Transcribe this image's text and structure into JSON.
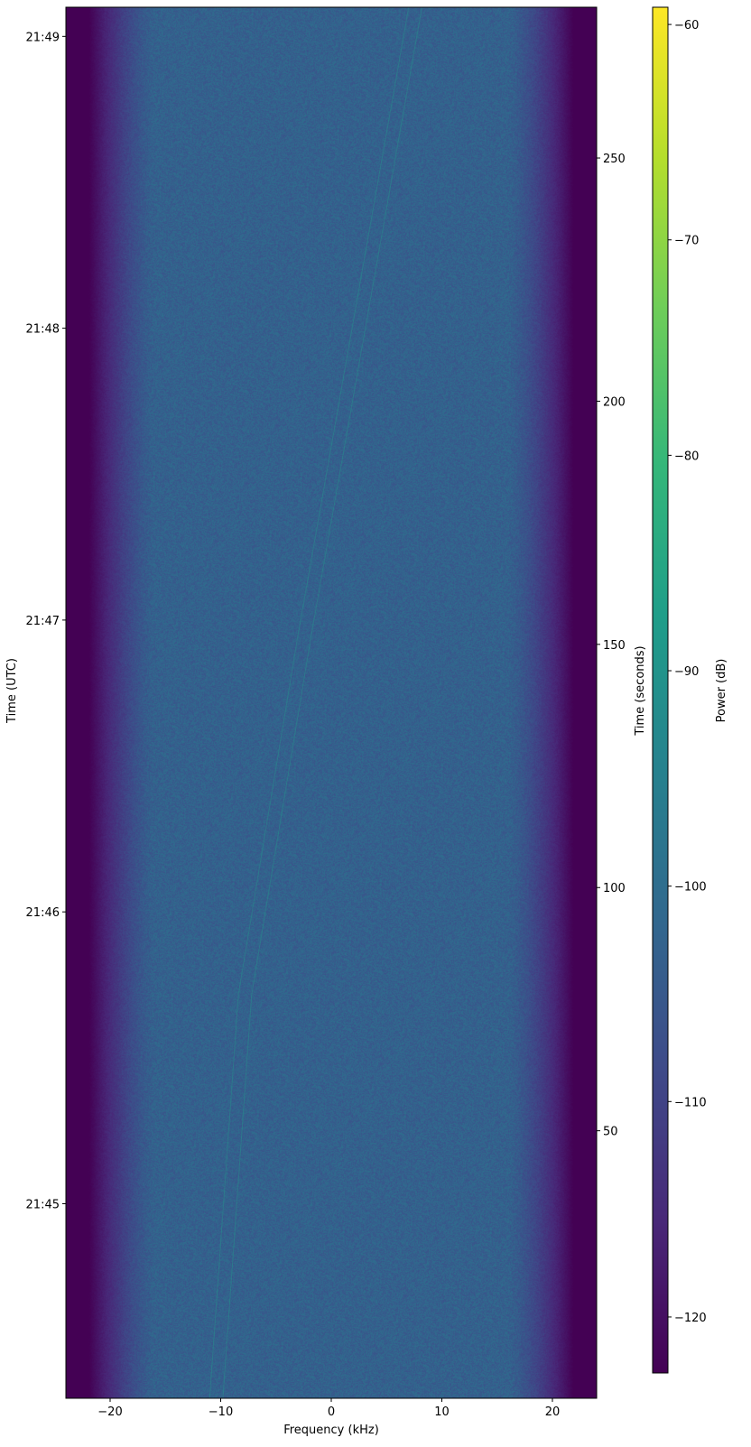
{
  "chart_data": {
    "type": "heatmap",
    "subtype": "spectrogram",
    "colormap": "viridis",
    "xlabel": "Frequency (kHz)",
    "ylabel_left": "Time (UTC)",
    "ylabel_right": "Time (seconds)",
    "colorbar_label": "Power (dB)",
    "xlim": [
      -24,
      24
    ],
    "ylim_seconds": [
      -5,
      281
    ],
    "clim": [
      -122.6,
      -59.2
    ],
    "x_ticks": [
      -20,
      -10,
      0,
      10,
      20
    ],
    "x_tick_labels": [
      "−20",
      "−10",
      "0",
      "10",
      "20"
    ],
    "right_ticks": [
      50,
      100,
      150,
      200,
      250
    ],
    "right_tick_labels": [
      "50",
      "100",
      "150",
      "200",
      "250"
    ],
    "left_ticks_seconds": [
      35,
      95,
      155,
      215,
      275
    ],
    "left_tick_labels": [
      "21:45",
      "21:46",
      "21:47",
      "21:48",
      "21:49"
    ],
    "colorbar_ticks": [
      -60,
      -70,
      -80,
      -90,
      -100,
      -110,
      -120
    ],
    "colorbar_tick_labels": [
      "−60",
      "−70",
      "−80",
      "−90",
      "−100",
      "−110",
      "−120"
    ],
    "noise_floor_db": -103,
    "band_edge_db": -123,
    "passband_khz": [
      -21,
      21
    ],
    "signal_traces": [
      {
        "points": [
          [
            -11,
            -5
          ],
          [
            -8.4,
            78
          ],
          [
            -3,
            152
          ],
          [
            7,
            281
          ]
        ]
      },
      {
        "points": [
          [
            -9.8,
            -5
          ],
          [
            -7.2,
            78
          ],
          [
            -1.8,
            152
          ],
          [
            8.2,
            281
          ]
        ]
      }
    ]
  }
}
